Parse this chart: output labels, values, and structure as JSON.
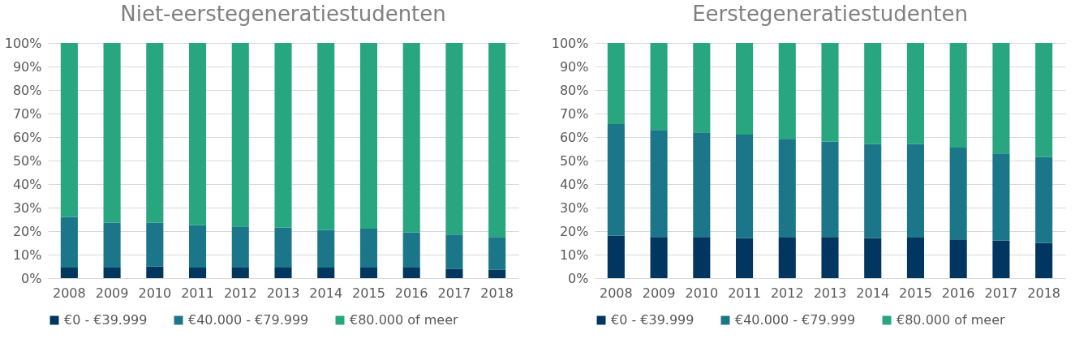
{
  "chart_data": [
    {
      "type": "bar",
      "title": "Niet-eerstegeneratiestudenten",
      "stacked": true,
      "grid": "y",
      "legend": "bottom",
      "categories": [
        "2008",
        "2009",
        "2010",
        "2011",
        "2012",
        "2013",
        "2014",
        "2015",
        "2016",
        "2017",
        "2018"
      ],
      "ylim": [
        0,
        100
      ],
      "yticks": [
        {
          "value": 0,
          "label": "0%"
        },
        {
          "value": 10,
          "label": "10%"
        },
        {
          "value": 20,
          "label": "20%"
        },
        {
          "value": 30,
          "label": "30%"
        },
        {
          "value": 40,
          "label": "40%"
        },
        {
          "value": 50,
          "label": "50%"
        },
        {
          "value": 60,
          "label": "60%"
        },
        {
          "value": 70,
          "label": "70%"
        },
        {
          "value": 80,
          "label": "80%"
        },
        {
          "value": 90,
          "label": "90%"
        },
        {
          "value": 100,
          "label": "100%"
        }
      ],
      "series": [
        {
          "name": "€0 - €39.999",
          "color": "#003660",
          "values": [
            4.5,
            4.5,
            5,
            4.5,
            4.5,
            4.5,
            4.5,
            4.5,
            4.5,
            4,
            3.5
          ]
        },
        {
          "name": "€40.000 - €79.999",
          "color": "#1b7689",
          "values": [
            21.5,
            19,
            18.5,
            18,
            17.5,
            17,
            16,
            16.5,
            15,
            14.5,
            14
          ]
        },
        {
          "name": "€80.000 of meer",
          "color": "#27a680",
          "values": [
            74,
            76.5,
            76.5,
            77.5,
            78,
            78.5,
            79.5,
            79,
            80.5,
            81.5,
            82.5
          ]
        }
      ]
    },
    {
      "type": "bar",
      "title": "Eerstegeneratiestudenten",
      "stacked": true,
      "grid": "y",
      "legend": "bottom",
      "categories": [
        "2008",
        "2009",
        "2010",
        "2011",
        "2012",
        "2013",
        "2014",
        "2015",
        "2016",
        "2017",
        "2018"
      ],
      "ylim": [
        0,
        100
      ],
      "yticks": [
        {
          "value": 0,
          "label": "0%"
        },
        {
          "value": 10,
          "label": "10%"
        },
        {
          "value": 20,
          "label": "20%"
        },
        {
          "value": 30,
          "label": "30%"
        },
        {
          "value": 40,
          "label": "40%"
        },
        {
          "value": 50,
          "label": "50%"
        },
        {
          "value": 60,
          "label": "60%"
        },
        {
          "value": 70,
          "label": "70%"
        },
        {
          "value": 80,
          "label": "80%"
        },
        {
          "value": 90,
          "label": "90%"
        },
        {
          "value": 100,
          "label": "100%"
        }
      ],
      "series": [
        {
          "name": "€0 - €39.999",
          "color": "#003660",
          "values": [
            18,
            17.5,
            17.5,
            17,
            17.5,
            17.5,
            17,
            17.5,
            16.5,
            16,
            15
          ]
        },
        {
          "name": "€40.000 - €79.999",
          "color": "#1b7689",
          "values": [
            47.5,
            45.5,
            44.5,
            44,
            41.5,
            40.5,
            40,
            39.5,
            39,
            37,
            36.5
          ]
        },
        {
          "name": "€80.000 of meer",
          "color": "#27a680",
          "values": [
            34.5,
            37,
            38,
            39,
            41,
            42,
            43,
            43,
            44.5,
            47,
            48.5
          ]
        }
      ]
    }
  ]
}
